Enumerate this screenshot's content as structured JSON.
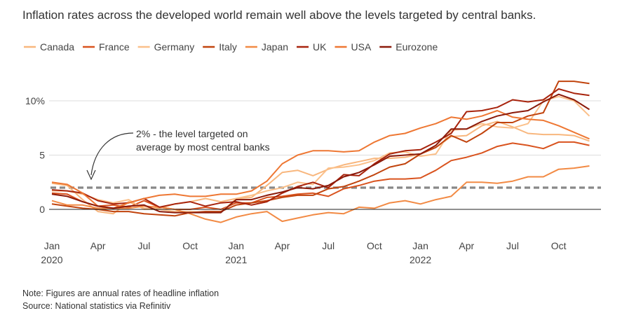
{
  "chart_data": {
    "type": "line",
    "title": "Inflation rates across the developed world remain well above the levels targeted by central banks.",
    "ylabel": "",
    "xlabel": "",
    "ylim": [
      -1.5,
      12.5
    ],
    "y_ticks": [
      0,
      5,
      10
    ],
    "y_tick_labels": [
      "0",
      "5",
      "10%"
    ],
    "x_ticks": [
      {
        "month": 0,
        "label": "Jan",
        "year": "2020"
      },
      {
        "month": 3,
        "label": "Apr",
        "year": ""
      },
      {
        "month": 6,
        "label": "Jul",
        "year": ""
      },
      {
        "month": 9,
        "label": "Oct",
        "year": ""
      },
      {
        "month": 12,
        "label": "Jan",
        "year": "2021"
      },
      {
        "month": 15,
        "label": "Apr",
        "year": ""
      },
      {
        "month": 18,
        "label": "Jul",
        "year": ""
      },
      {
        "month": 21,
        "label": "Oct",
        "year": ""
      },
      {
        "month": 24,
        "label": "Jan",
        "year": "2022"
      },
      {
        "month": 27,
        "label": "Apr",
        "year": ""
      },
      {
        "month": 30,
        "label": "Jul",
        "year": ""
      },
      {
        "month": 33,
        "label": "Oct",
        "year": ""
      }
    ],
    "x": [
      "2020-01",
      "2020-02",
      "2020-03",
      "2020-04",
      "2020-05",
      "2020-06",
      "2020-07",
      "2020-08",
      "2020-09",
      "2020-10",
      "2020-11",
      "2020-12",
      "2021-01",
      "2021-02",
      "2021-03",
      "2021-04",
      "2021-05",
      "2021-06",
      "2021-07",
      "2021-08",
      "2021-09",
      "2021-10",
      "2021-11",
      "2021-12",
      "2022-01",
      "2022-02",
      "2022-03",
      "2022-04",
      "2022-05",
      "2022-06",
      "2022-07",
      "2022-08",
      "2022-09",
      "2022-10",
      "2022-11",
      "2022-12"
    ],
    "series": [
      {
        "name": "Canada",
        "color": "#f8b77e",
        "values": [
          2.4,
          2.2,
          0.9,
          -0.2,
          -0.4,
          0.7,
          0.1,
          0.1,
          0.5,
          0.7,
          1.0,
          0.7,
          1.0,
          1.1,
          2.2,
          3.4,
          3.6,
          3.1,
          3.7,
          4.1,
          4.4,
          4.7,
          4.7,
          4.8,
          5.1,
          5.7,
          6.7,
          6.8,
          7.7,
          8.1,
          7.6,
          7.0,
          6.9,
          6.9,
          6.8,
          6.3
        ]
      },
      {
        "name": "France",
        "color": "#d9531e",
        "values": [
          1.5,
          1.4,
          0.7,
          0.3,
          0.4,
          0.2,
          0.8,
          0.2,
          0.0,
          0.0,
          0.2,
          0.0,
          0.6,
          0.6,
          1.1,
          1.2,
          1.4,
          1.5,
          1.2,
          1.9,
          2.2,
          2.6,
          2.8,
          2.8,
          2.9,
          3.6,
          4.5,
          4.8,
          5.2,
          5.8,
          6.1,
          5.9,
          5.6,
          6.2,
          6.2,
          5.9
        ]
      },
      {
        "name": "Germany",
        "color": "#fbc08a",
        "values": [
          1.7,
          1.7,
          1.4,
          0.9,
          0.6,
          0.9,
          0.0,
          0.0,
          -0.2,
          -0.2,
          -0.3,
          -0.3,
          1.0,
          1.3,
          1.7,
          2.0,
          2.5,
          2.3,
          3.8,
          3.9,
          4.1,
          4.5,
          5.2,
          5.3,
          4.9,
          5.1,
          7.3,
          7.4,
          7.9,
          7.6,
          7.5,
          7.9,
          10.0,
          10.4,
          10.0,
          8.6
        ]
      },
      {
        "name": "Italy",
        "color": "#c1440e",
        "values": [
          0.5,
          0.3,
          0.1,
          0.0,
          -0.2,
          -0.2,
          -0.4,
          -0.5,
          -0.6,
          -0.3,
          -0.2,
          -0.2,
          0.4,
          0.6,
          0.8,
          1.1,
          1.3,
          1.3,
          1.9,
          2.1,
          2.6,
          3.2,
          3.9,
          4.2,
          5.1,
          5.7,
          6.8,
          6.2,
          7.0,
          8.0,
          8.0,
          8.6,
          8.9,
          11.8,
          11.8,
          11.6
        ]
      },
      {
        "name": "Japan",
        "color": "#f28a44",
        "values": [
          0.8,
          0.4,
          0.4,
          0.1,
          0.1,
          0.1,
          0.3,
          0.2,
          0.0,
          -0.4,
          -0.9,
          -1.2,
          -0.7,
          -0.4,
          -0.2,
          -1.1,
          -0.8,
          -0.5,
          -0.3,
          -0.4,
          0.2,
          0.1,
          0.6,
          0.8,
          0.5,
          0.9,
          1.2,
          2.5,
          2.5,
          2.4,
          2.6,
          3.0,
          3.0,
          3.7,
          3.8,
          4.0
        ]
      },
      {
        "name": "UK",
        "color": "#a8240d",
        "values": [
          1.8,
          1.7,
          1.5,
          0.8,
          0.5,
          0.6,
          1.0,
          0.2,
          0.5,
          0.7,
          0.3,
          0.6,
          0.7,
          0.4,
          0.7,
          1.5,
          2.1,
          2.5,
          2.0,
          3.2,
          3.1,
          4.2,
          5.1,
          5.4,
          5.5,
          6.2,
          7.0,
          9.0,
          9.1,
          9.4,
          10.1,
          9.9,
          10.1,
          11.1,
          10.7,
          10.5
        ]
      },
      {
        "name": "USA",
        "color": "#ee7733",
        "values": [
          2.5,
          2.3,
          1.5,
          0.3,
          0.1,
          0.6,
          1.0,
          1.3,
          1.4,
          1.2,
          1.2,
          1.4,
          1.4,
          1.7,
          2.6,
          4.2,
          5.0,
          5.4,
          5.4,
          5.3,
          5.4,
          6.2,
          6.8,
          7.0,
          7.5,
          7.9,
          8.5,
          8.3,
          8.6,
          9.1,
          8.5,
          8.3,
          8.2,
          7.7,
          7.1,
          6.5
        ]
      },
      {
        "name": "Eurozone",
        "color": "#8b1a0a",
        "values": [
          1.4,
          1.2,
          0.7,
          0.3,
          0.1,
          0.3,
          0.4,
          -0.2,
          -0.3,
          -0.3,
          -0.3,
          -0.3,
          0.9,
          0.9,
          1.3,
          1.6,
          2.0,
          1.9,
          2.2,
          3.0,
          3.4,
          4.1,
          4.9,
          5.0,
          5.1,
          5.9,
          7.4,
          7.4,
          8.1,
          8.6,
          8.9,
          9.1,
          9.9,
          10.6,
          10.1,
          9.2
        ]
      }
    ],
    "reference_line": {
      "value": 2,
      "color": "#888888",
      "style": "dashed"
    },
    "annotation": {
      "lines": [
        "2% - the level targeted on",
        "average by most central banks"
      ]
    },
    "note": "Note: Figures are annual rates of headline inflation",
    "source": "Source: National statistics via Refinitiv",
    "legend_position": "top-left"
  }
}
